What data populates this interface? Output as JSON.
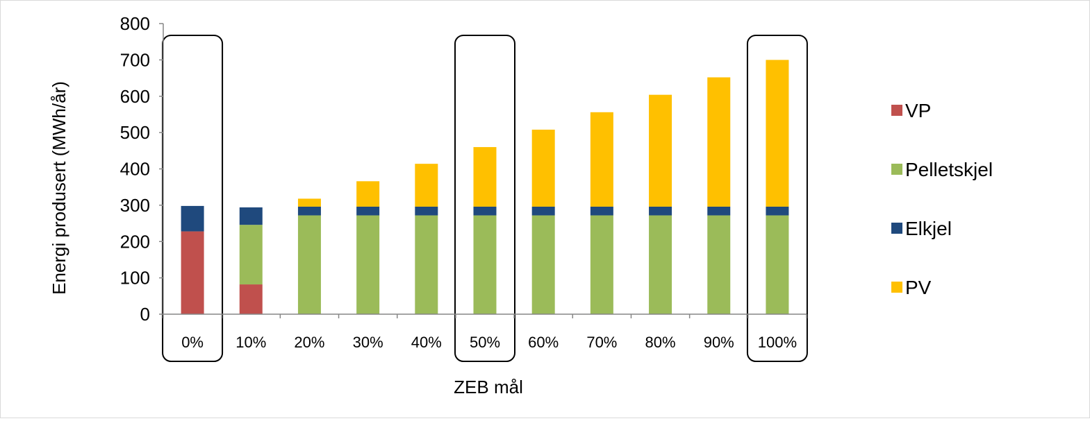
{
  "chart_data": {
    "type": "bar",
    "stacked": true,
    "title": "",
    "xlabel": "ZEB mål",
    "ylabel": "Energi produsert (MWh/år)",
    "ylim": [
      0,
      800
    ],
    "yticks": [
      "0",
      "100",
      "200",
      "300",
      "400",
      "500",
      "600",
      "700",
      "800"
    ],
    "categories": [
      "0%",
      "10%",
      "20%",
      "30%",
      "40%",
      "50%",
      "60%",
      "70%",
      "80%",
      "90%",
      "100%"
    ],
    "highlighted_categories": [
      "0%",
      "50%",
      "100%"
    ],
    "legend_position": "right",
    "grid": false,
    "series": [
      {
        "name": "VP",
        "color": "#c0504d",
        "values": [
          228,
          82,
          0,
          0,
          0,
          0,
          0,
          0,
          0,
          0,
          0
        ]
      },
      {
        "name": "Pelletskjel",
        "color": "#9bbb59",
        "values": [
          0,
          164,
          272,
          272,
          272,
          272,
          272,
          272,
          272,
          272,
          272
        ]
      },
      {
        "name": "Elkjel",
        "color": "#1f497d",
        "values": [
          70,
          48,
          24,
          24,
          24,
          24,
          24,
          24,
          24,
          24,
          24
        ]
      },
      {
        "name": "PV",
        "color": "#ffc000",
        "values": [
          0,
          0,
          22,
          70,
          118,
          164,
          212,
          260,
          308,
          356,
          404
        ]
      }
    ]
  }
}
